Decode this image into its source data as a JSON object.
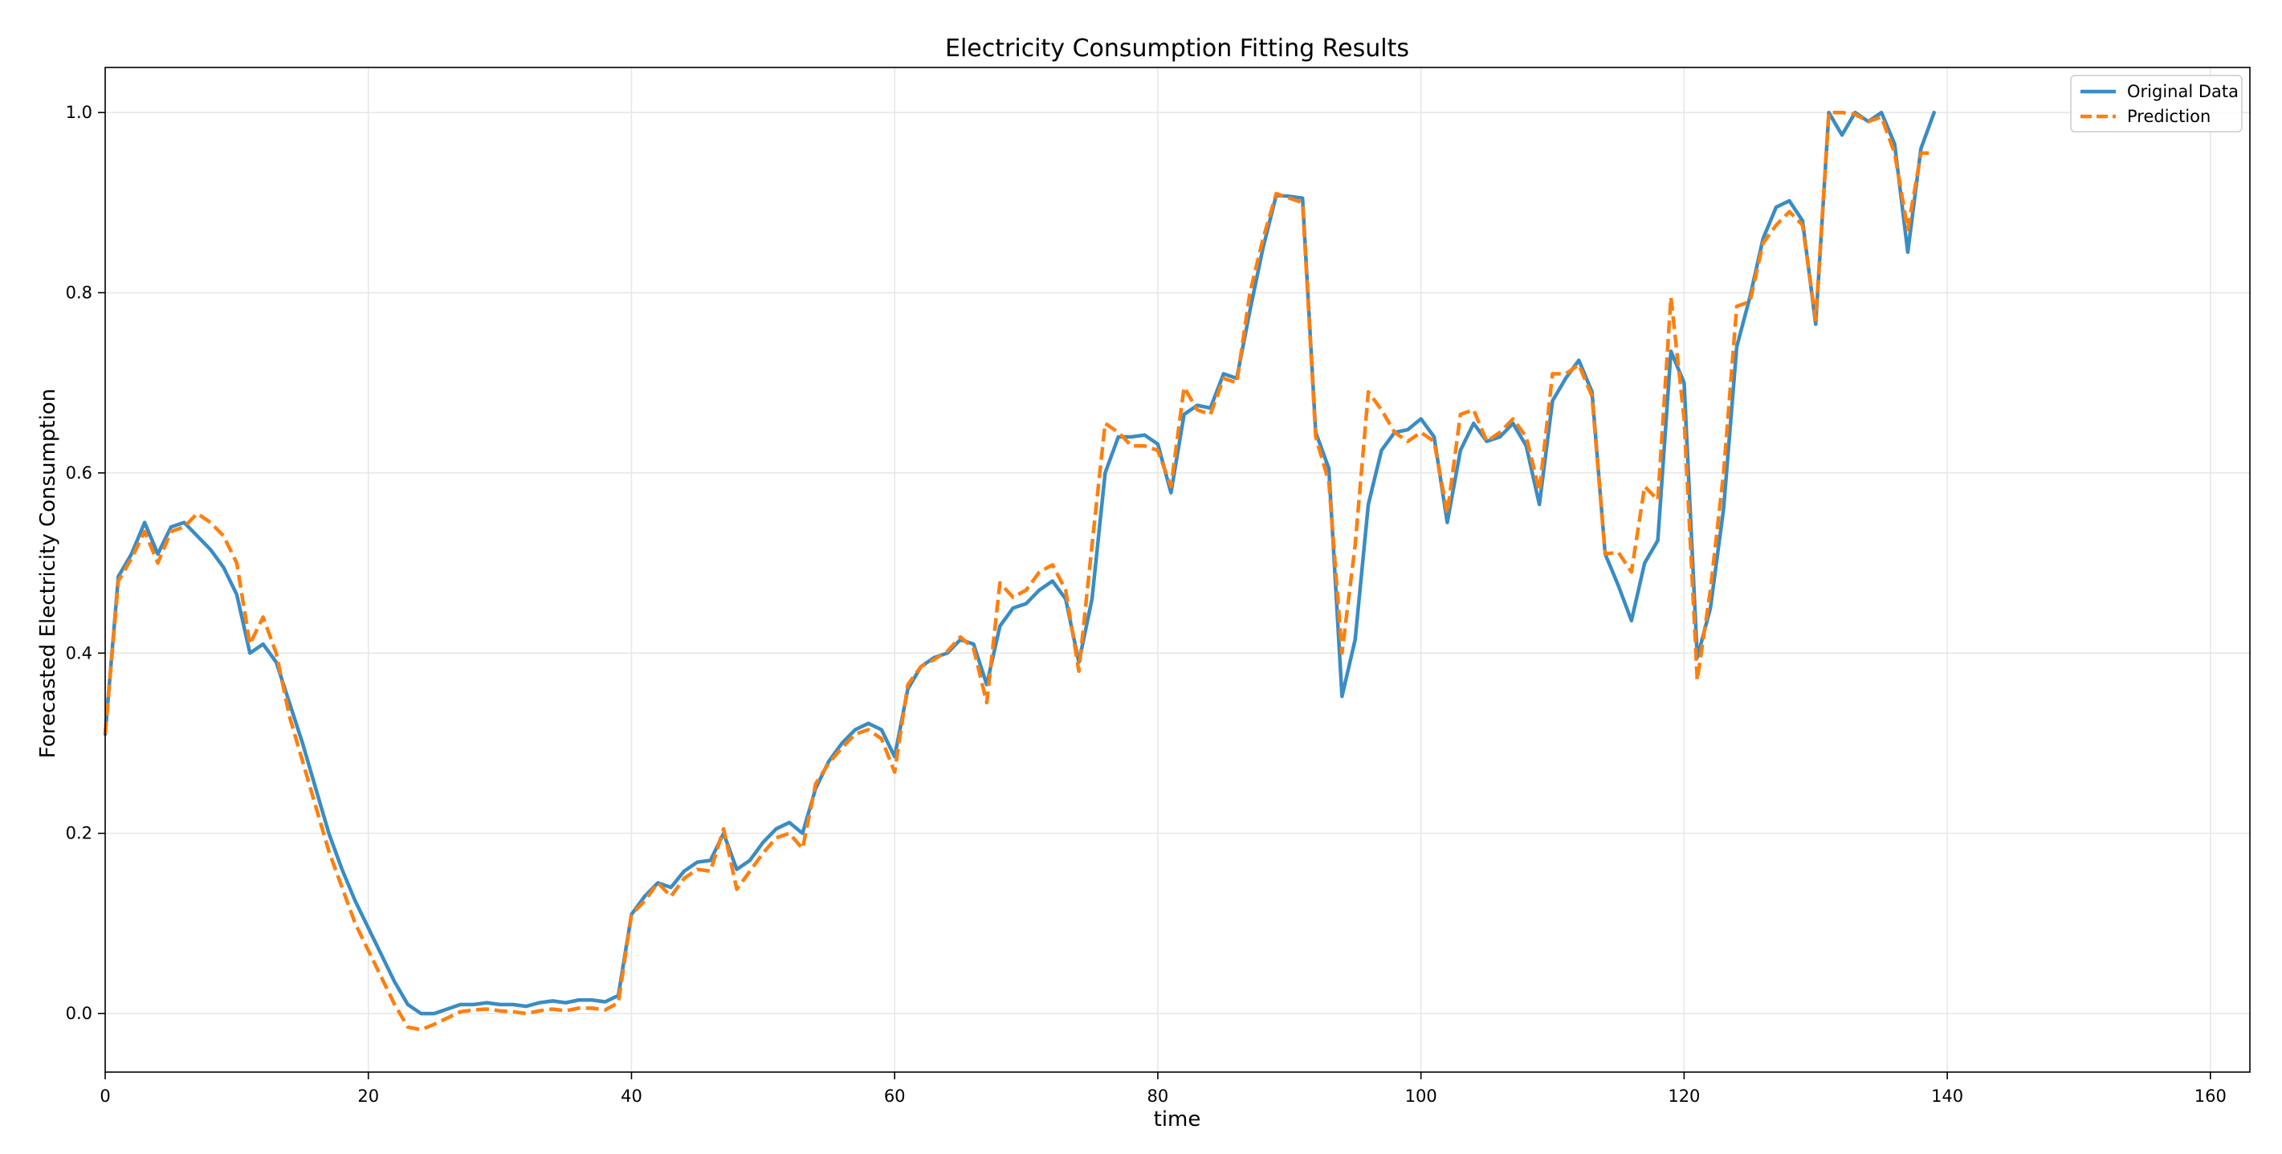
{
  "chart_data": {
    "type": "line",
    "title": "Electricity Consumption Fitting Results",
    "xlabel": "time",
    "ylabel": "Forecasted Electricity Consumption",
    "xlim": [
      0,
      163
    ],
    "ylim": [
      -0.065,
      1.05
    ],
    "xticks": [
      0,
      20,
      40,
      60,
      80,
      100,
      120,
      140,
      160
    ],
    "yticks": [
      0.0,
      0.2,
      0.4,
      0.6,
      0.8,
      1.0
    ],
    "xtick_labels": [
      "0",
      "20",
      "40",
      "60",
      "80",
      "100",
      "120",
      "140",
      "160"
    ],
    "ytick_labels": [
      "0.0",
      "0.2",
      "0.4",
      "0.6",
      "0.8",
      "1.0"
    ],
    "grid": true,
    "legend_position": "top-right",
    "series": [
      {
        "name": "Original Data",
        "color": "#3a8cc4",
        "style": "solid",
        "values": [
          0.31,
          0.485,
          0.51,
          0.545,
          0.51,
          0.54,
          0.545,
          0.53,
          0.515,
          0.495,
          0.465,
          0.4,
          0.41,
          0.39,
          0.345,
          0.3,
          0.25,
          0.2,
          0.16,
          0.125,
          0.095,
          0.065,
          0.035,
          0.01,
          0.0,
          0.0,
          0.005,
          0.01,
          0.01,
          0.012,
          0.01,
          0.01,
          0.008,
          0.012,
          0.014,
          0.012,
          0.015,
          0.015,
          0.013,
          0.02,
          0.11,
          0.13,
          0.145,
          0.14,
          0.158,
          0.168,
          0.17,
          0.2,
          0.16,
          0.17,
          0.19,
          0.205,
          0.212,
          0.2,
          0.25,
          0.28,
          0.3,
          0.315,
          0.322,
          0.315,
          0.285,
          0.36,
          0.385,
          0.395,
          0.4,
          0.415,
          0.41,
          0.365,
          0.43,
          0.45,
          0.455,
          0.47,
          0.48,
          0.46,
          0.39,
          0.46,
          0.6,
          0.64,
          0.64,
          0.642,
          0.632,
          0.578,
          0.665,
          0.675,
          0.672,
          0.71,
          0.705,
          0.78,
          0.85,
          0.908,
          0.907,
          0.905,
          0.645,
          0.605,
          0.352,
          0.415,
          0.565,
          0.625,
          0.645,
          0.648,
          0.66,
          0.64,
          0.545,
          0.625,
          0.655,
          0.635,
          0.64,
          0.655,
          0.63,
          0.565,
          0.68,
          0.705,
          0.725,
          0.69,
          0.51,
          0.475,
          0.436,
          0.5,
          0.525,
          0.735,
          0.7,
          0.395,
          0.45,
          0.56,
          0.74,
          0.795,
          0.86,
          0.895,
          0.902,
          0.88,
          0.765,
          1.0,
          0.975,
          1.0,
          0.99,
          1.0,
          0.965,
          0.845,
          0.96,
          1.0
        ]
      },
      {
        "name": "Prediction",
        "color": "#ff7f0e",
        "style": "dashed",
        "values": [
          0.31,
          0.48,
          0.505,
          0.535,
          0.5,
          0.535,
          0.54,
          0.555,
          0.545,
          0.53,
          0.5,
          0.41,
          0.44,
          0.4,
          0.33,
          0.28,
          0.23,
          0.18,
          0.14,
          0.1,
          0.07,
          0.04,
          0.01,
          -0.015,
          -0.018,
          -0.012,
          -0.005,
          0.002,
          0.004,
          0.005,
          0.003,
          0.002,
          0.0,
          0.003,
          0.005,
          0.003,
          0.006,
          0.006,
          0.004,
          0.012,
          0.11,
          0.125,
          0.145,
          0.13,
          0.15,
          0.16,
          0.158,
          0.205,
          0.138,
          0.158,
          0.178,
          0.195,
          0.2,
          0.183,
          0.255,
          0.278,
          0.295,
          0.31,
          0.315,
          0.305,
          0.268,
          0.365,
          0.385,
          0.393,
          0.402,
          0.418,
          0.405,
          0.345,
          0.478,
          0.462,
          0.47,
          0.49,
          0.498,
          0.47,
          0.38,
          0.52,
          0.655,
          0.645,
          0.63,
          0.63,
          0.625,
          0.585,
          0.695,
          0.67,
          0.665,
          0.705,
          0.7,
          0.8,
          0.86,
          0.91,
          0.905,
          0.9,
          0.64,
          0.59,
          0.4,
          0.52,
          0.69,
          0.67,
          0.645,
          0.635,
          0.645,
          0.635,
          0.555,
          0.665,
          0.67,
          0.635,
          0.645,
          0.66,
          0.64,
          0.58,
          0.71,
          0.71,
          0.72,
          0.685,
          0.51,
          0.512,
          0.49,
          0.585,
          0.57,
          0.795,
          0.66,
          0.37,
          0.47,
          0.6,
          0.785,
          0.79,
          0.855,
          0.875,
          0.89,
          0.875,
          0.77,
          1.0,
          1.0,
          0.998,
          0.99,
          0.995,
          0.955,
          0.87,
          0.955,
          0.955
        ]
      }
    ]
  }
}
